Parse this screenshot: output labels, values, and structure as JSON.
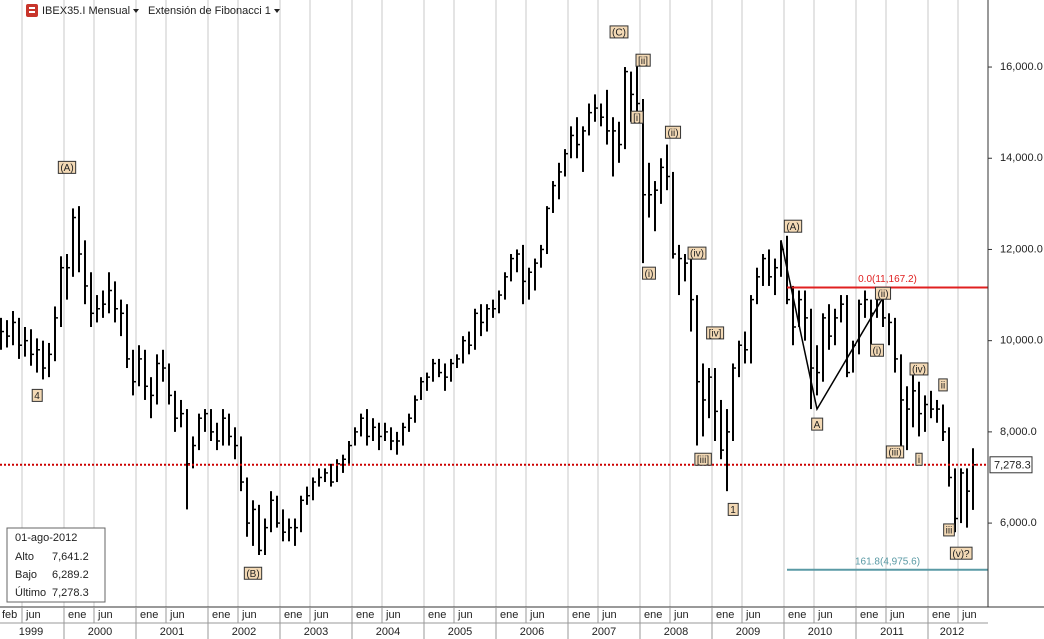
{
  "toolbar": {
    "symbol": "IBEX35.I Mensual",
    "study": "Extensión de Fibonacci 1"
  },
  "info": {
    "date": "01-ago-2012",
    "rows": [
      {
        "label": "Alto",
        "value": "7,641.2"
      },
      {
        "label": "Bajo",
        "value": "6,289.2"
      },
      {
        "label": "Último",
        "value": "7,278.3"
      }
    ]
  },
  "chart_data": {
    "type": "ohlc",
    "color": "#000000",
    "grid": true,
    "ylim": [
      4160,
      17470
    ],
    "yticks": [
      {
        "value": 6000,
        "label": "6,000.0"
      },
      {
        "value": 8000,
        "label": "8,000.0"
      },
      {
        "value": 10000,
        "label": "10,000.0"
      },
      {
        "value": 12000,
        "label": "12,000.0"
      },
      {
        "value": 14000,
        "label": "14,000.0"
      },
      {
        "value": 16000,
        "label": "16,000.0"
      }
    ],
    "categories": [
      "feb",
      null,
      null,
      null,
      "jun",
      null,
      null,
      null,
      null,
      null,
      null,
      "ene",
      null,
      null,
      null,
      null,
      "jun",
      null,
      null,
      null,
      null,
      null,
      null,
      "ene",
      null,
      null,
      null,
      null,
      "jun",
      null,
      null,
      null,
      null,
      null,
      null,
      "ene",
      null,
      null,
      null,
      null,
      "jun",
      null,
      null,
      null,
      null,
      null,
      null,
      "ene",
      null,
      null,
      null,
      null,
      "jun",
      null,
      null,
      null,
      null,
      null,
      null,
      "ene",
      null,
      null,
      null,
      null,
      "jun",
      null,
      null,
      null,
      null,
      null,
      null,
      "ene",
      null,
      null,
      null,
      null,
      "jun",
      null,
      null,
      null,
      null,
      null,
      null,
      "ene",
      null,
      null,
      null,
      null,
      "jun",
      null,
      null,
      null,
      null,
      null,
      null,
      "ene",
      null,
      null,
      null,
      null,
      "jun",
      null,
      null,
      null,
      null,
      null,
      null,
      "ene",
      null,
      null,
      null,
      null,
      "jun",
      null,
      null,
      null,
      null,
      null,
      null,
      "ene",
      null,
      null,
      null,
      null,
      "jun",
      null,
      null,
      null,
      null,
      null,
      null,
      "ene",
      null,
      null,
      null,
      null,
      "jun",
      null,
      null,
      null,
      null,
      null,
      null,
      "ene",
      null,
      null,
      null,
      null,
      "jun",
      null,
      null,
      null,
      null,
      null,
      null,
      "ene",
      null,
      null,
      null,
      null,
      "jun",
      null,
      null
    ],
    "years": [
      "1999",
      "2000",
      "2001",
      "2002",
      "2003",
      "2004",
      "2005",
      "2006",
      "2007",
      "2008",
      "2009",
      "2010",
      "2011",
      "2012"
    ],
    "high": [
      10500,
      10450,
      10650,
      10500,
      10300,
      10250,
      10050,
      10000,
      9950,
      10750,
      11850,
      11900,
      12900,
      12950,
      12200,
      11500,
      11000,
      11100,
      11500,
      11300,
      10900,
      10800,
      9800,
      9900,
      9800,
      9200,
      9700,
      9800,
      9500,
      8900,
      8700,
      8500,
      7900,
      8400,
      8500,
      8500,
      8200,
      8500,
      8400,
      8100,
      7900,
      7000,
      6500,
      6400,
      6100,
      6700,
      6600,
      6300,
      6100,
      6100,
      6600,
      6800,
      7000,
      7200,
      7200,
      7300,
      7400,
      7500,
      7800,
      8100,
      8400,
      8500,
      8300,
      8200,
      8200,
      8100,
      8000,
      8200,
      8400,
      8800,
      9200,
      9300,
      9600,
      9600,
      9500,
      9600,
      9700,
      10100,
      10200,
      10700,
      10800,
      10800,
      10900,
      11100,
      11500,
      11900,
      12000,
      12100,
      11600,
      11800,
      12100,
      12950,
      13500,
      13900,
      14200,
      14700,
      14900,
      14700,
      15200,
      15400,
      15200,
      15500,
      14900,
      14800,
      16000,
      15900,
      16050,
      15300,
      13900,
      13500,
      14000,
      14300,
      13700,
      12100,
      11900,
      11900,
      11000,
      9500,
      9400,
      9400,
      8700,
      8500,
      9500,
      10000,
      10200,
      11000,
      11600,
      11900,
      12000,
      11800,
      12200,
      12300,
      11200,
      11100,
      11100,
      10700,
      9900,
      10600,
      10800,
      10700,
      11000,
      11000,
      10000,
      10900,
      11100,
      10900,
      11000,
      11100,
      10600,
      10500,
      9700,
      9000,
      9300,
      9100,
      8800,
      8900,
      8700,
      8600,
      8100,
      7200,
      7200,
      7200,
      7641.2
    ],
    "low": [
      9800,
      9850,
      9900,
      9600,
      9650,
      9450,
      9300,
      9150,
      9200,
      9550,
      10300,
      10900,
      11400,
      11500,
      10800,
      10300,
      10400,
      10500,
      10600,
      10400,
      10100,
      9400,
      8800,
      9000,
      8700,
      8300,
      8600,
      9100,
      8600,
      8000,
      8100,
      6300,
      7200,
      7600,
      8000,
      7800,
      7600,
      7700,
      7700,
      7400,
      6700,
      5700,
      5500,
      5300,
      5300,
      5800,
      5900,
      5600,
      5600,
      5500,
      5800,
      6400,
      6500,
      6800,
      6900,
      6800,
      6900,
      7100,
      7300,
      7700,
      7900,
      7700,
      7800,
      7600,
      7800,
      7600,
      7500,
      7700,
      8000,
      8200,
      8700,
      8900,
      9100,
      9200,
      8900,
      9100,
      9400,
      9500,
      9700,
      9800,
      10100,
      10200,
      10500,
      10600,
      10900,
      11300,
      11500,
      10800,
      10900,
      11100,
      11600,
      11900,
      12800,
      13100,
      13600,
      14000,
      14000,
      13700,
      14500,
      14800,
      14700,
      14300,
      13600,
      13900,
      14200,
      14800,
      15000,
      11700,
      12700,
      12400,
      13000,
      13300,
      11800,
      11000,
      11300,
      10200,
      7700,
      7900,
      8300,
      7800,
      7400,
      6700,
      7800,
      9200,
      9500,
      9500,
      10800,
      11200,
      11200,
      11000,
      11400,
      10800,
      9900,
      10300,
      10000,
      8500,
      8800,
      9100,
      9800,
      9900,
      10400,
      9200,
      9300,
      9700,
      10500,
      9800,
      10500,
      10300,
      9900,
      9300,
      7600,
      7600,
      8100,
      7900,
      8000,
      8300,
      8200,
      7800,
      6800,
      5800,
      6000,
      5900,
      6289.2
    ],
    "close": [
      10200,
      10100,
      10400,
      9900,
      10000,
      9700,
      9800,
      9400,
      9700,
      10500,
      11600,
      11600,
      12700,
      11900,
      11200,
      10600,
      10700,
      10800,
      11100,
      10700,
      10600,
      9600,
      9100,
      9600,
      9000,
      8800,
      9500,
      9400,
      8800,
      8300,
      8400,
      7300,
      7700,
      8300,
      8400,
      8000,
      7800,
      8300,
      7900,
      7700,
      6900,
      6000,
      6300,
      5400,
      5900,
      6500,
      6000,
      5800,
      5900,
      5900,
      6500,
      6600,
      6900,
      7000,
      7100,
      6900,
      7300,
      7400,
      7700,
      8000,
      8300,
      7900,
      8100,
      7900,
      8000,
      7800,
      7800,
      8100,
      8300,
      8700,
      9100,
      9200,
      9500,
      9300,
      9200,
      9500,
      9600,
      10000,
      9900,
      10600,
      10400,
      10700,
      10700,
      11000,
      11400,
      11800,
      11900,
      11300,
      11500,
      11700,
      12000,
      12900,
      13400,
      13700,
      14100,
      14500,
      14300,
      14600,
      15000,
      15100,
      14900,
      14600,
      14600,
      14300,
      15900,
      15400,
      15200,
      13200,
      13200,
      13300,
      13800,
      13600,
      11900,
      11800,
      11700,
      10900,
      9100,
      8700,
      9200,
      8450,
      7600,
      8000,
      9400,
      9900,
      9800,
      10900,
      11400,
      11800,
      11400,
      11600,
      12000,
      10900,
      10300,
      10900,
      10500,
      9400,
      9300,
      10500,
      10100,
      10500,
      10800,
      9300,
      9900,
      10800,
      10900,
      10600,
      10900,
      10500,
      10400,
      9600,
      8700,
      8500,
      8900,
      8400,
      8600,
      8500,
      8500,
      8000,
      7000,
      6100,
      7100,
      6700,
      7278.3
    ],
    "last_price": {
      "value": 7278.3,
      "label": "7,278.3",
      "color": "#cc0000"
    },
    "fib_levels": [
      {
        "label": "0.0(11,167.2)",
        "value": 11167.2,
        "from": 131,
        "color": "#e02020"
      },
      {
        "label": "161.8(4,975.6)",
        "value": 4975.6,
        "from": 131,
        "color": "#5a9aa5"
      }
    ],
    "fib_points": [
      {
        "at": 130,
        "y": 12200
      },
      {
        "at": 136,
        "y": 8500
      },
      {
        "at": 148,
        "y": 11167.2
      }
    ],
    "wave_labels": [
      {
        "text": "(A)",
        "at": 11,
        "y": 13800
      },
      {
        "text": "4",
        "at": 6,
        "y": 8800
      },
      {
        "text": "(B)",
        "at": 42,
        "y": 4900
      },
      {
        "text": "(C)",
        "at": 103,
        "y": 16770
      },
      {
        "text": "[ii]",
        "at": 107,
        "y": 16150
      },
      {
        "text": "[i]",
        "at": 106,
        "y": 14900
      },
      {
        "text": "(ii)",
        "at": 112,
        "y": 14570
      },
      {
        "text": "(i)",
        "at": 108,
        "y": 11480
      },
      {
        "text": "(iv)",
        "at": 116,
        "y": 11920
      },
      {
        "text": "[iv]",
        "at": 119,
        "y": 10170
      },
      {
        "text": "[iii]",
        "at": 117,
        "y": 7400
      },
      {
        "text": "1",
        "at": 122,
        "y": 6300
      },
      {
        "text": "(A)",
        "at": 132,
        "y": 12510
      },
      {
        "text": "A",
        "at": 136,
        "y": 8170
      },
      {
        "text": "(ii)",
        "at": 147,
        "y": 11040
      },
      {
        "text": "(i)",
        "at": 146,
        "y": 9790
      },
      {
        "text": "(iv)",
        "at": 153,
        "y": 9380
      },
      {
        "text": "(iii)",
        "at": 149,
        "y": 7560
      },
      {
        "text": "i",
        "at": 153,
        "y": 7400
      },
      {
        "text": "ii",
        "at": 157,
        "y": 9030
      },
      {
        "text": "iii",
        "at": 158,
        "y": 5850
      },
      {
        "text": "(v)?",
        "at": 160,
        "y": 5340
      }
    ]
  }
}
